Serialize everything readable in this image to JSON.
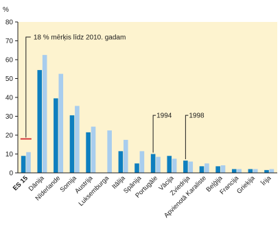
{
  "chart_data": {
    "type": "bar",
    "ylabel": "%",
    "ylim": [
      0,
      80
    ],
    "yticks": [
      0,
      10,
      20,
      30,
      40,
      50,
      60,
      70,
      80
    ],
    "categories": [
      "ES 15",
      "Dānija",
      "Nīderlande",
      "Somija",
      "Austrija",
      "Luksemburga",
      "Itālija",
      "Spānija",
      "Portugāle",
      "Vācija",
      "Zviedrija",
      "Apvienotā Karaliste",
      "Beļģija",
      "Francija",
      "Grieķija",
      "Īrija"
    ],
    "bold_categories": [
      "ES 15"
    ],
    "series": [
      {
        "name": "1994",
        "values": [
          9,
          54.5,
          39.5,
          30.5,
          21.5,
          0,
          11.5,
          5,
          10,
          9,
          6.5,
          3.5,
          3.5,
          2,
          2,
          1.5
        ]
      },
      {
        "name": "1998",
        "values": [
          11,
          62.5,
          52.5,
          35.5,
          24.5,
          22.5,
          17.5,
          11.5,
          8.5,
          7.5,
          6,
          5,
          4,
          2,
          2,
          2
        ]
      }
    ],
    "target": {
      "category": "ES 15",
      "value": 18,
      "label": "18 % mērķis līdz 2010. gadam"
    },
    "series_labels": [
      {
        "text": "1994",
        "category": "Portugāle"
      },
      {
        "text": "1998",
        "category": "Zviedrija"
      }
    ],
    "colors": {
      "series_1994": "#0e7fbf",
      "series_1998": "#a8cdee",
      "plot_background": "#fdf3cf",
      "target_marker": "#d0202a",
      "axis": "#1a1a1a"
    }
  }
}
